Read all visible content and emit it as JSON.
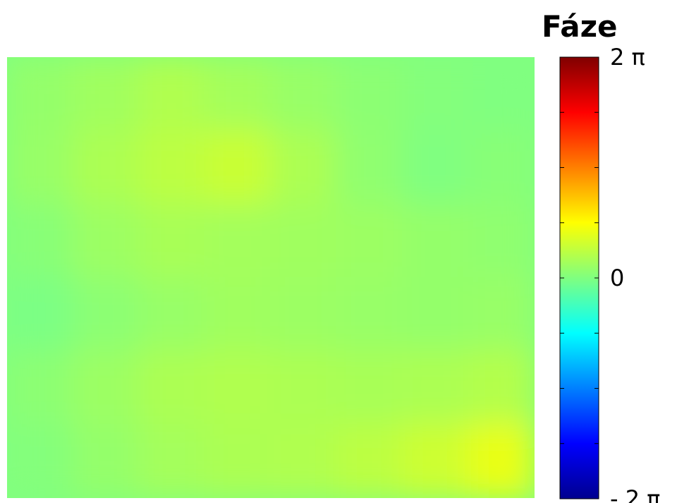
{
  "chart_data": {
    "type": "heatmap",
    "title": "",
    "xlabel": "",
    "ylabel": "",
    "colormap": "jet",
    "grid": false,
    "colorbar": {
      "title": "Fáze",
      "range": [
        -6.283,
        6.283
      ],
      "ticks": [
        {
          "value": 6.283,
          "label": "2 π"
        },
        {
          "value": 0,
          "label": "0"
        },
        {
          "value": -6.283,
          "label": "- 2 π"
        }
      ],
      "minor_tick_values": [
        4.712,
        3.142,
        1.571,
        -1.571,
        -3.142,
        -4.712
      ]
    },
    "field": {
      "description_rows": 6,
      "description_cols": 8,
      "values": [
        [
          0.25,
          0.4,
          0.6,
          0.45,
          0.3,
          0.15,
          0.05,
          0.0
        ],
        [
          0.3,
          0.55,
          0.75,
          0.9,
          0.55,
          0.2,
          0.0,
          0.1
        ],
        [
          0.1,
          0.35,
          0.5,
          0.45,
          0.4,
          0.35,
          0.25,
          0.2
        ],
        [
          -0.05,
          0.15,
          0.3,
          0.4,
          0.35,
          0.3,
          0.25,
          0.3
        ],
        [
          0.15,
          0.35,
          0.55,
          0.6,
          0.55,
          0.5,
          0.55,
          0.65
        ],
        [
          0.05,
          0.25,
          0.45,
          0.55,
          0.6,
          0.75,
          0.95,
          1.3
        ]
      ]
    }
  }
}
